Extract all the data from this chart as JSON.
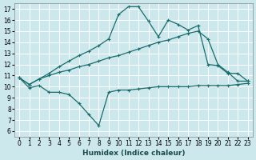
{
  "xlabel": "Humidex (Indice chaleur)",
  "bg_color": "#cce8ed",
  "grid_color": "#ffffff",
  "line_color": "#1a6b6b",
  "xlim": [
    -0.5,
    23.5
  ],
  "ylim": [
    5.5,
    17.5
  ],
  "xticks": [
    0,
    1,
    2,
    3,
    4,
    5,
    6,
    7,
    8,
    9,
    10,
    11,
    12,
    13,
    14,
    15,
    16,
    17,
    18,
    19,
    20,
    21,
    22,
    23
  ],
  "yticks": [
    6,
    7,
    8,
    9,
    10,
    11,
    12,
    13,
    14,
    15,
    16,
    17
  ],
  "series1_x": [
    0,
    1,
    2,
    3,
    4,
    5,
    6,
    7,
    8,
    9,
    10,
    11,
    12,
    13,
    14,
    15,
    16,
    17,
    18,
    19,
    20,
    21,
    22,
    23
  ],
  "series1_y": [
    10.8,
    9.9,
    10.1,
    9.5,
    9.5,
    9.3,
    8.5,
    7.5,
    6.5,
    9.5,
    9.7,
    9.7,
    9.8,
    9.9,
    10.0,
    10.0,
    10.0,
    10.0,
    10.1,
    10.1,
    10.1,
    10.1,
    10.2,
    10.3
  ],
  "series2_x": [
    0,
    1,
    2,
    3,
    4,
    5,
    6,
    7,
    8,
    9,
    10,
    11,
    12,
    13,
    14,
    15,
    16,
    17,
    18,
    19,
    20,
    21,
    22,
    23
  ],
  "series2_y": [
    10.8,
    10.2,
    10.7,
    11.0,
    11.3,
    11.5,
    11.8,
    12.0,
    12.3,
    12.6,
    12.8,
    13.1,
    13.4,
    13.7,
    14.0,
    14.2,
    14.5,
    14.8,
    15.0,
    14.3,
    12.0,
    11.3,
    10.5,
    10.5
  ],
  "series3_x": [
    0,
    1,
    2,
    3,
    4,
    5,
    6,
    7,
    8,
    9,
    10,
    11,
    12,
    13,
    14,
    15,
    16,
    17,
    18,
    19,
    20,
    21,
    22,
    23
  ],
  "series3_y": [
    10.8,
    10.2,
    10.7,
    11.2,
    11.8,
    12.3,
    12.8,
    13.2,
    13.7,
    14.3,
    16.5,
    17.2,
    17.2,
    15.9,
    14.5,
    16.0,
    15.6,
    15.1,
    15.5,
    12.0,
    11.9,
    11.2,
    11.2,
    10.5
  ]
}
